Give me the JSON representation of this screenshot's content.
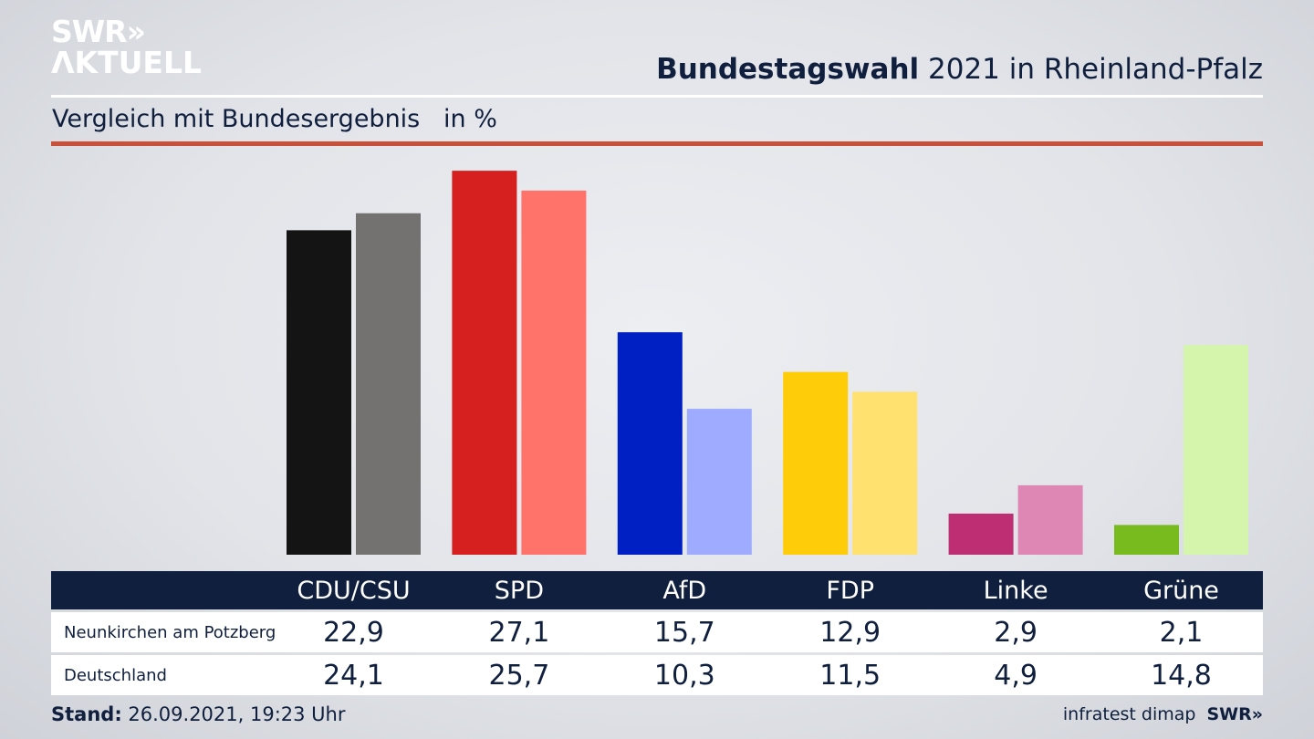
{
  "header": {
    "logo_line1": "SWR»",
    "logo_line2": "ΛKTUELL",
    "title_bold": "Bundestagswahl",
    "title_rest": " 2021 in Rheinland-Pfalz",
    "subtitle": "Vergleich mit Bundesergebnis   in %"
  },
  "footer": {
    "stand_label": "Stand:",
    "stand_value": " 26.09.2021, 19:23 Uhr",
    "source": "infratest dimap",
    "source_logo": "SWR»"
  },
  "chart_data": {
    "type": "bar",
    "title": "Bundestagswahl 2021 in Rheinland-Pfalz",
    "subtitle": "Vergleich mit Bundesergebnis",
    "unit": "in %",
    "ylim": [
      0,
      30
    ],
    "grid": false,
    "categories": [
      "CDU/CSU",
      "SPD",
      "AfD",
      "FDP",
      "Linke",
      "Grüne"
    ],
    "series": [
      {
        "name": "Neunkirchen am Potzberg",
        "values": [
          22.9,
          27.1,
          15.7,
          12.9,
          2.9,
          2.1
        ],
        "labels": [
          "22,9",
          "27,1",
          "15,7",
          "12,9",
          "2,9",
          "2,1"
        ],
        "colors": [
          "#141414",
          "#d61f1f",
          "#0020c4",
          "#ffcc0a",
          "#bd2e73",
          "#78bb1f"
        ]
      },
      {
        "name": "Deutschland",
        "values": [
          24.1,
          25.7,
          10.3,
          11.5,
          4.9,
          14.8
        ],
        "labels": [
          "24,1",
          "25,7",
          "10,3",
          "11,5",
          "4,9",
          "14,8"
        ],
        "colors": [
          "#737271",
          "#ff736b",
          "#9eabff",
          "#ffe170",
          "#de87b4",
          "#d4f5ab"
        ]
      }
    ]
  }
}
